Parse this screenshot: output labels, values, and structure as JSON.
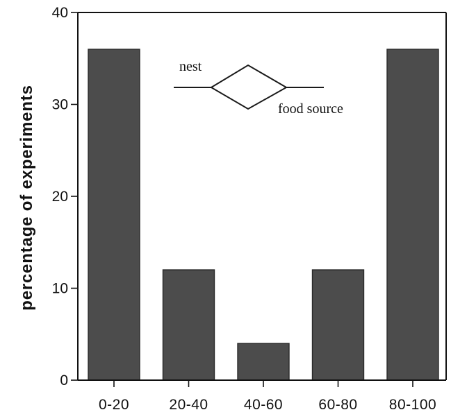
{
  "chart_data": {
    "type": "bar",
    "categories": [
      "0-20",
      "20-40",
      "40-60",
      "60-80",
      "80-100"
    ],
    "values": [
      36,
      12,
      4,
      12,
      36
    ],
    "xlabel": "",
    "ylabel": "percentage of experiments",
    "ylim": [
      0,
      40
    ],
    "yticks": [
      0,
      10,
      20,
      30,
      40
    ],
    "grid": false,
    "bar_color": "#4c4c4c"
  },
  "inset": {
    "nest_label": "nest",
    "food_label": "food source"
  }
}
